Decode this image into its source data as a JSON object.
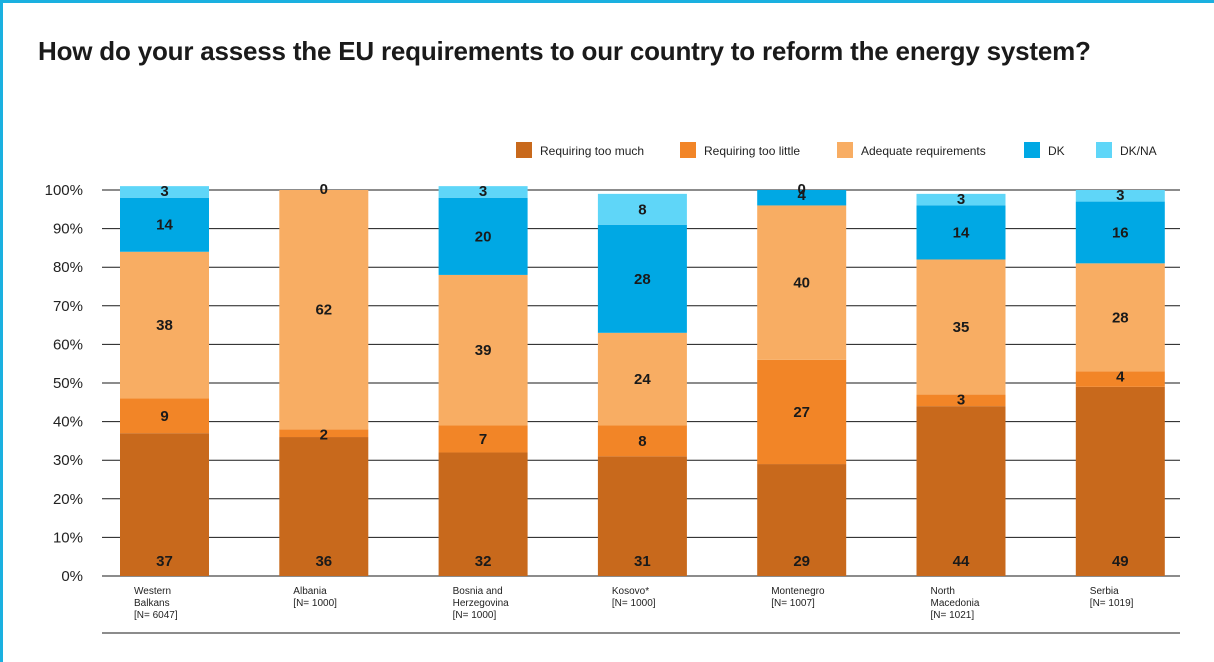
{
  "colors": {
    "Requiring too much": "#c8691c",
    "Requiring too little": "#f28527",
    "Adequate requirements": "#f8ad63",
    "DK": "#00a8e4",
    "DK/NA": "#5fd6f8",
    "frame": "#1ab0e0"
  },
  "chart_data": {
    "type": "bar",
    "stacked": true,
    "title": "How do your assess the EU requirements to our country to reform the energy system?",
    "categories": [
      [
        "Western",
        "Balkans",
        "[N= 6047]"
      ],
      [
        "Albania",
        "[N= 1000]"
      ],
      [
        "Bosnia and",
        "Herzegovina",
        "[N= 1000]"
      ],
      [
        "Kosovo*",
        "[N= 1000]"
      ],
      [
        "Montenegro",
        "[N= 1007]"
      ],
      [
        "North",
        "Macedonia",
        "[N= 1021]"
      ],
      [
        "Serbia",
        "[N= 1019]"
      ]
    ],
    "series": [
      {
        "name": "Requiring too much",
        "values": [
          37,
          36,
          32,
          31,
          29,
          44,
          49
        ]
      },
      {
        "name": "Requiring too little",
        "values": [
          9,
          2,
          7,
          8,
          27,
          3,
          4
        ]
      },
      {
        "name": "Adequate requirements",
        "values": [
          38,
          62,
          39,
          24,
          40,
          35,
          28
        ]
      },
      {
        "name": "DK",
        "values": [
          14,
          null,
          20,
          28,
          4,
          14,
          16
        ]
      },
      {
        "name": "DK/NA",
        "values": [
          3,
          0,
          3,
          8,
          0,
          3,
          3
        ]
      }
    ],
    "legend": [
      "Requiring too much",
      "Requiring too little",
      "Adequate requirements",
      "DK",
      "DK/NA"
    ],
    "legend_position": "top-right",
    "yticks": [
      "0%",
      "10%",
      "20%",
      "30%",
      "40%",
      "50%",
      "60%",
      "70%",
      "80%",
      "90%",
      "100%"
    ],
    "ylim": [
      0,
      100
    ],
    "grid": true
  }
}
